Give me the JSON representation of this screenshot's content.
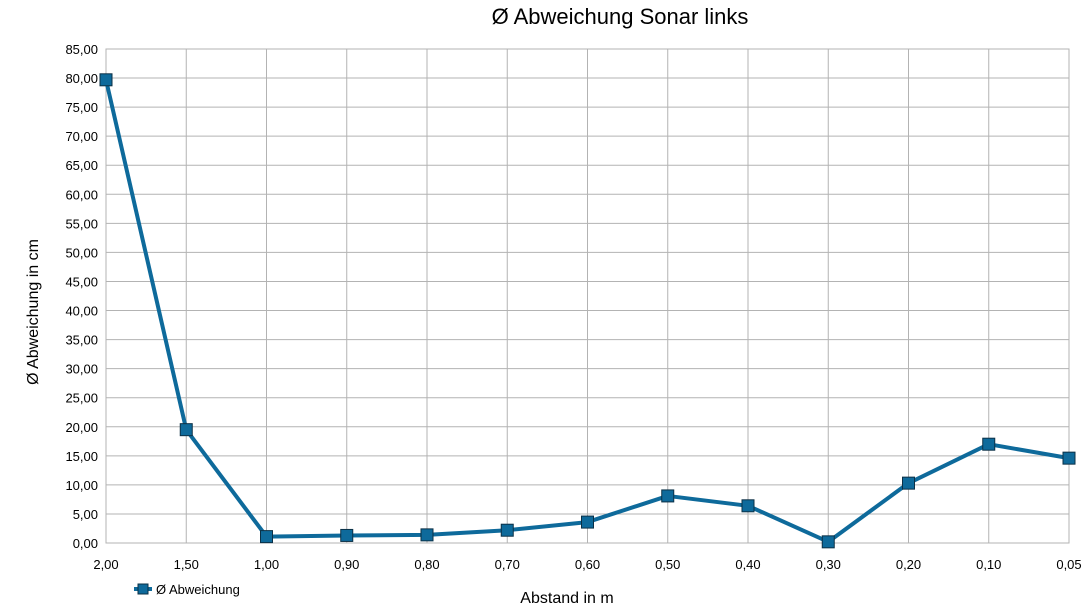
{
  "chart_data": {
    "type": "line",
    "title": "Ø Abweichung Sonar links",
    "xlabel": "Abstand in m",
    "ylabel": "Ø  Abweichung in cm",
    "categories": [
      "2,00",
      "1,50",
      "1,00",
      "0,90",
      "0,80",
      "0,70",
      "0,60",
      "0,50",
      "0,40",
      "0,30",
      "0,20",
      "0,10",
      "0,05"
    ],
    "series": [
      {
        "name": "Ø Abweichung",
        "color": "#0e6a9b",
        "values": [
          79.7,
          19.5,
          1.1,
          1.3,
          1.4,
          2.2,
          3.6,
          8.1,
          6.4,
          0.2,
          10.3,
          17.0,
          14.6
        ]
      }
    ],
    "ylim": [
      0,
      85
    ],
    "yticks": [
      "0,00",
      "5,00",
      "10,00",
      "15,00",
      "20,00",
      "25,00",
      "30,00",
      "35,00",
      "40,00",
      "45,00",
      "50,00",
      "55,00",
      "60,00",
      "65,00",
      "70,00",
      "75,00",
      "80,00",
      "85,00"
    ],
    "grid": true,
    "legend_position": "bottom-left"
  }
}
